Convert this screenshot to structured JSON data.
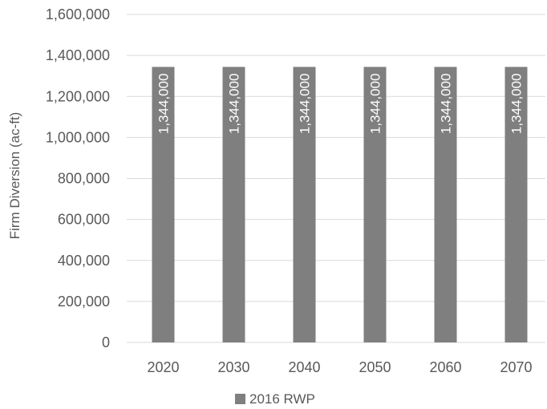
{
  "chart_data": {
    "type": "bar",
    "title": "",
    "xlabel": "",
    "ylabel": "Firm Diversion (ac-ft)",
    "categories": [
      "2020",
      "2030",
      "2040",
      "2050",
      "2060",
      "2070"
    ],
    "series": [
      {
        "name": "2016 RWP",
        "values": [
          1344000,
          1344000,
          1344000,
          1344000,
          1344000,
          1344000
        ],
        "data_labels": [
          "1,344,000",
          "1,344,000",
          "1,344,000",
          "1,344,000",
          "1,344,000",
          "1,344,000"
        ],
        "color": "#7f7f7f"
      }
    ],
    "ylim": [
      0,
      1600000
    ],
    "y_ticks": [
      0,
      200000,
      400000,
      600000,
      800000,
      1000000,
      1200000,
      1400000,
      1600000
    ],
    "y_tick_labels": [
      "0",
      "200,000",
      "400,000",
      "600,000",
      "800,000",
      "1,000,000",
      "1,200,000",
      "1,400,000",
      "1,600,000"
    ],
    "grid": true,
    "legend_position": "bottom"
  },
  "colors": {
    "bar": "#7f7f7f",
    "gridline": "#d9d9d9",
    "text": "#595959",
    "data_label": "#ffffff"
  }
}
